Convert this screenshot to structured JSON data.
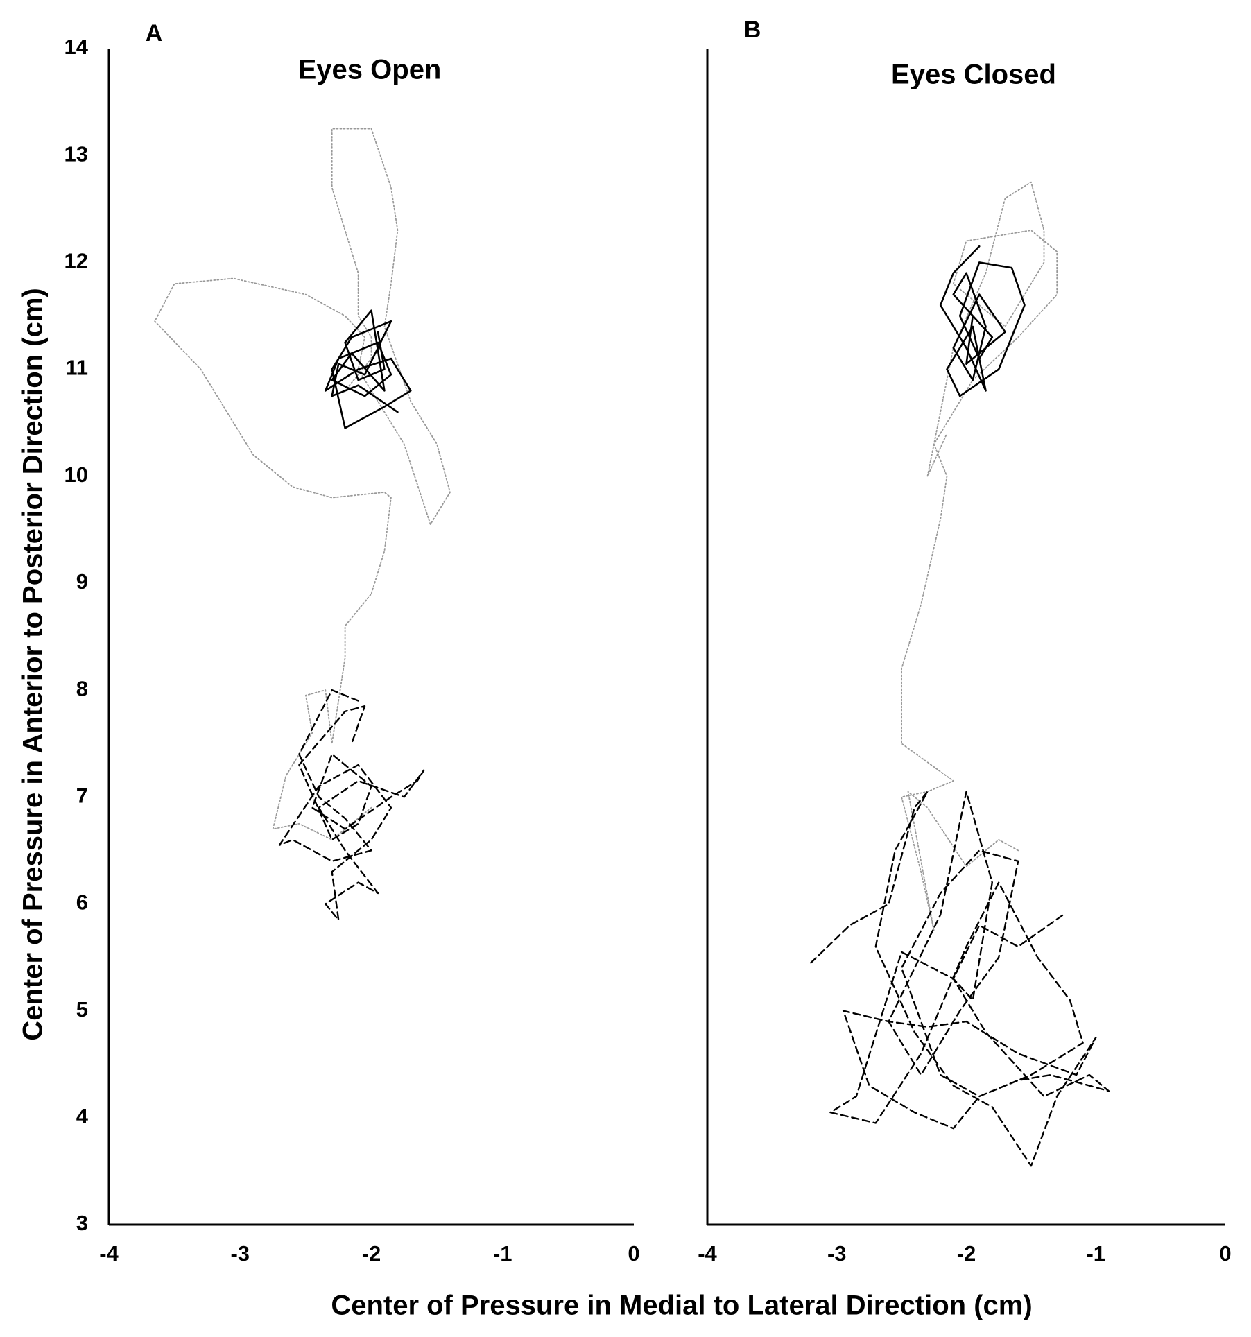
{
  "x_label": "Center of Pressure in Medial to Lateral Direction (cm)",
  "chart_data": [
    {
      "type": "line",
      "panel": "A",
      "title": "Eyes Open",
      "y_label": "Center of Pressure in Anterior to Posterior Direction (cm)",
      "xlim": [
        -4,
        0
      ],
      "xticks": [
        -4,
        -3,
        -2,
        -1,
        0
      ],
      "ylim": [
        3,
        14
      ],
      "yticks": [
        3,
        4,
        5,
        6,
        7,
        8,
        9,
        10,
        11,
        12,
        13,
        14
      ],
      "series": [
        {
          "style": "dotted",
          "color": "#999999",
          "x": [
            -2.0,
            -2.3,
            -2.55,
            -2.75,
            -2.65,
            -2.45,
            -2.5,
            -2.35,
            -2.3,
            -2.2,
            -2.2,
            -2.0,
            -1.9,
            -1.85,
            -1.9,
            -2.3,
            -2.6,
            -2.9,
            -3.1,
            -3.3,
            -3.65,
            -3.5,
            -3.05,
            -2.5,
            -2.2,
            -2.05,
            -2.1,
            -1.95,
            -1.75,
            -1.55,
            -1.4,
            -1.5,
            -1.7,
            -1.9,
            -1.85,
            -1.8,
            -1.85,
            -2.0,
            -2.3,
            -2.3,
            -2.2,
            -2.1,
            -2.1,
            -2.0,
            -2.0,
            -2.2
          ],
          "y": [
            6.9,
            6.6,
            6.75,
            6.7,
            7.2,
            7.6,
            7.95,
            8.0,
            7.5,
            8.3,
            8.6,
            8.9,
            9.3,
            9.8,
            9.85,
            9.8,
            9.9,
            10.2,
            10.6,
            11.0,
            11.45,
            11.8,
            11.85,
            11.7,
            11.5,
            11.3,
            11.0,
            10.7,
            10.3,
            9.55,
            9.85,
            10.3,
            10.7,
            11.4,
            11.8,
            12.3,
            12.7,
            13.25,
            13.25,
            12.7,
            12.3,
            11.9,
            11.5,
            11.3,
            11.1,
            10.8
          ]
        },
        {
          "style": "solid",
          "color": "#000000",
          "x": [
            -1.8,
            -2.1,
            -2.3,
            -2.25,
            -2.05,
            -1.95,
            -1.85,
            -2.15,
            -2.3,
            -2.2,
            -1.9,
            -1.7,
            -1.85,
            -2.1,
            -2.35,
            -2.25,
            -1.95,
            -1.85,
            -2.05,
            -2.3,
            -2.15,
            -1.9,
            -2.0,
            -2.2,
            -2.1,
            -1.9,
            -1.95
          ],
          "y": [
            10.6,
            10.85,
            10.75,
            11.05,
            10.95,
            11.2,
            11.45,
            11.3,
            11.0,
            10.45,
            10.65,
            10.8,
            11.1,
            11.0,
            10.8,
            11.1,
            11.25,
            10.95,
            10.75,
            10.9,
            11.15,
            10.8,
            11.55,
            11.25,
            10.9,
            11.0,
            11.35
          ]
        },
        {
          "style": "dashed",
          "color": "#000000",
          "x": [
            -2.1,
            -2.3,
            -2.55,
            -2.4,
            -2.2,
            -2.0,
            -2.3,
            -2.6,
            -2.7,
            -2.4,
            -2.1,
            -1.85,
            -2.0,
            -2.3,
            -2.25,
            -2.35,
            -2.1,
            -1.95,
            -2.2,
            -2.4,
            -2.1,
            -1.75,
            -1.6,
            -1.65,
            -1.85,
            -2.2,
            -2.45,
            -2.3,
            -2.0,
            -2.1,
            -2.3,
            -2.55,
            -2.2,
            -2.05,
            -2.15
          ],
          "y": [
            7.9,
            8.0,
            7.4,
            7.0,
            6.8,
            6.5,
            6.4,
            6.6,
            6.55,
            7.1,
            7.3,
            6.9,
            6.6,
            6.3,
            5.85,
            6.0,
            6.2,
            6.1,
            6.5,
            6.9,
            7.15,
            7.0,
            7.25,
            7.15,
            7.0,
            6.7,
            6.9,
            7.4,
            7.1,
            6.75,
            6.6,
            7.3,
            7.8,
            7.85,
            7.5
          ]
        }
      ]
    },
    {
      "type": "line",
      "panel": "B",
      "title": "Eyes Closed",
      "xlim": [
        -4,
        0
      ],
      "xticks": [
        -4,
        -3,
        -2,
        -1,
        0
      ],
      "ylim": [
        3,
        14
      ],
      "series": [
        {
          "style": "dotted",
          "color": "#999999",
          "x": [
            -1.6,
            -1.75,
            -2.0,
            -2.3,
            -2.45,
            -2.25,
            -2.35,
            -2.5,
            -2.3,
            -2.1,
            -2.5,
            -2.5,
            -2.35,
            -2.2,
            -2.15,
            -2.25,
            -1.95,
            -1.6,
            -1.3,
            -1.3,
            -1.5,
            -2.0,
            -2.1,
            -1.7,
            -1.4,
            -1.4,
            -1.5,
            -1.7,
            -1.85,
            -2.1,
            -2.3,
            -2.15
          ],
          "y": [
            6.5,
            6.6,
            6.35,
            6.9,
            7.05,
            5.75,
            6.3,
            7.0,
            7.05,
            7.15,
            7.5,
            8.2,
            8.8,
            9.6,
            10.0,
            10.3,
            10.9,
            11.3,
            11.7,
            12.1,
            12.3,
            12.2,
            11.8,
            11.4,
            12.0,
            12.3,
            12.75,
            12.6,
            11.9,
            11.2,
            10.0,
            10.4
          ]
        },
        {
          "style": "solid",
          "color": "#000000",
          "x": [
            -1.9,
            -2.1,
            -2.2,
            -2.0,
            -1.85,
            -1.95,
            -2.15,
            -2.05,
            -1.75,
            -1.55,
            -1.65,
            -1.9,
            -2.05,
            -1.9,
            -1.8,
            -2.1,
            -2.0,
            -1.85,
            -1.95,
            -2.1,
            -1.9,
            -1.7,
            -2.0,
            -1.95
          ],
          "y": [
            12.15,
            11.9,
            11.6,
            11.2,
            10.8,
            11.4,
            11.0,
            10.75,
            11.0,
            11.6,
            11.95,
            12.0,
            11.5,
            11.1,
            11.3,
            11.7,
            11.9,
            11.4,
            10.9,
            11.2,
            11.7,
            11.35,
            11.05,
            11.5
          ]
        },
        {
          "style": "dashed",
          "color": "#000000",
          "x": [
            -3.2,
            -2.9,
            -2.6,
            -2.4,
            -2.3,
            -2.55,
            -2.7,
            -2.4,
            -2.1,
            -1.8,
            -1.5,
            -1.3,
            -1.0,
            -1.15,
            -1.6,
            -2.0,
            -2.3,
            -2.6,
            -2.95,
            -2.75,
            -2.4,
            -2.1,
            -1.9,
            -1.6,
            -1.35,
            -0.9,
            -1.05,
            -1.4,
            -1.85,
            -2.1,
            -2.5,
            -2.85,
            -3.05,
            -2.7,
            -2.35,
            -2.0,
            -1.75,
            -1.45,
            -1.2,
            -1.1,
            -1.5,
            -1.9,
            -2.2,
            -2.5,
            -2.2,
            -1.9,
            -1.6,
            -1.75,
            -2.05,
            -2.35,
            -2.6,
            -2.2,
            -2.0,
            -1.8,
            -1.95,
            -2.1,
            -1.9,
            -1.6,
            -1.25
          ],
          "y": [
            5.45,
            5.8,
            6.0,
            6.9,
            7.05,
            6.5,
            5.6,
            4.8,
            4.3,
            4.1,
            3.55,
            4.2,
            4.75,
            4.4,
            4.6,
            4.9,
            4.85,
            4.9,
            5.0,
            4.3,
            4.05,
            3.9,
            4.2,
            4.35,
            4.4,
            4.25,
            4.4,
            4.2,
            4.8,
            5.3,
            5.55,
            4.2,
            4.05,
            3.95,
            4.6,
            5.6,
            6.2,
            5.5,
            5.1,
            4.7,
            4.4,
            4.2,
            4.4,
            5.4,
            6.1,
            6.5,
            6.4,
            5.5,
            5.0,
            4.4,
            4.9,
            5.9,
            7.05,
            6.2,
            5.1,
            5.3,
            5.8,
            5.6,
            5.9
          ]
        }
      ]
    }
  ]
}
